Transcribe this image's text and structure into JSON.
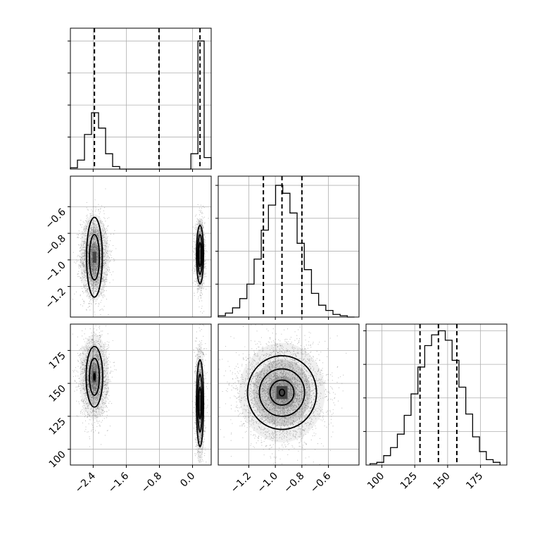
{
  "chart_data": {
    "type": "corner",
    "variables": [
      "x0",
      "x1",
      "x2"
    ],
    "grid": true,
    "colors": {
      "mark": "#000000",
      "points": "#555555",
      "gridline": "#b0b0b0"
    },
    "axes": {
      "x0": {
        "range": [
          -2.95,
          0.45
        ],
        "ticks": [
          -2.4,
          -1.6,
          -0.8,
          0.0
        ],
        "tick_labels": [
          "−2.4",
          "−1.6",
          "−0.8",
          "0.0"
        ]
      },
      "x1": {
        "range": [
          -1.43,
          -0.37
        ],
        "ticks": [
          -1.2,
          -1.0,
          -0.8,
          -0.6
        ],
        "tick_labels": [
          "−1.2",
          "−1.0",
          "−0.8",
          "−0.6"
        ]
      },
      "x2": {
        "range": [
          88,
          195
        ],
        "ticks": [
          100,
          125,
          150,
          175
        ],
        "tick_labels": [
          "100",
          "125",
          "150",
          "175"
        ]
      }
    },
    "histograms": [
      {
        "variable": "x0",
        "bin_edges": [
          -2.95,
          -2.78,
          -2.61,
          -2.44,
          -2.27,
          -2.1,
          -1.93,
          -1.76,
          -1.59,
          -0.55,
          -0.38,
          -0.21,
          -0.04,
          0.13,
          0.28,
          0.45
        ],
        "counts": [
          0.01,
          0.07,
          0.27,
          0.44,
          0.32,
          0.12,
          0.02,
          0.0,
          0.0,
          0.0,
          0.0,
          0.0,
          0.12,
          1.0,
          0.09
        ],
        "quantiles": [
          -2.37,
          -0.81,
          0.18
        ],
        "ylim": [
          0,
          1.1
        ]
      },
      {
        "variable": "x1",
        "bin_edges": [
          -1.43,
          -1.376,
          -1.322,
          -1.268,
          -1.214,
          -1.16,
          -1.106,
          -1.052,
          -0.998,
          -0.944,
          -0.89,
          -0.836,
          -0.782,
          -0.728,
          -0.674,
          -0.62,
          -0.566,
          -0.512,
          -0.458,
          -0.404
        ],
        "counts": [
          0.01,
          0.03,
          0.07,
          0.14,
          0.25,
          0.44,
          0.66,
          0.85,
          1.0,
          0.94,
          0.79,
          0.56,
          0.36,
          0.18,
          0.09,
          0.05,
          0.02,
          0.01,
          0.0
        ],
        "quantiles": [
          -1.09,
          -0.95,
          -0.8
        ],
        "ylim": [
          0,
          1.07
        ]
      },
      {
        "variable": "x2",
        "bin_edges": [
          91,
          96.2,
          101.4,
          106.6,
          111.8,
          117,
          122.2,
          127.4,
          132.6,
          137.8,
          143,
          148.2,
          153.4,
          158.6,
          163.8,
          169,
          174.2,
          179.4,
          184.6,
          189.8
        ],
        "counts": [
          0.01,
          0.02,
          0.07,
          0.13,
          0.23,
          0.37,
          0.53,
          0.73,
          0.89,
          0.97,
          1.0,
          0.93,
          0.78,
          0.58,
          0.38,
          0.21,
          0.1,
          0.04,
          0.02
        ],
        "quantiles": [
          129,
          143,
          157
        ],
        "ylim": [
          0,
          1.05
        ]
      }
    ],
    "scatter_panels": [
      {
        "x": "x0",
        "y": "x1",
        "clusters": [
          {
            "center": [
              -2.37,
              -0.98
            ],
            "sd": [
              0.13,
              0.12
            ],
            "n": 2200
          },
          {
            "center": [
              0.18,
              -0.96
            ],
            "sd": [
              0.045,
              0.1
            ],
            "n": 1300
          }
        ],
        "contours": [
          {
            "cluster": 0,
            "levels": [
              [
                0.19,
                0.3
              ],
              [
                0.12,
                0.17
              ]
            ]
          },
          {
            "cluster": 1,
            "levels": [
              [
                0.085,
                0.22
              ],
              [
                0.055,
                0.15
              ],
              [
                0.03,
                0.09
              ]
            ]
          }
        ]
      },
      {
        "x": "x0",
        "y": "x2",
        "clusters": [
          {
            "center": [
              -2.37,
              155
            ],
            "sd": [
              0.13,
              12
            ],
            "n": 2200
          },
          {
            "center": [
              0.18,
              135
            ],
            "sd": [
              0.045,
              17
            ],
            "n": 1300
          }
        ],
        "contours": [
          {
            "cluster": 0,
            "levels": [
              [
                0.2,
                23
              ],
              [
                0.12,
                14
              ],
              [
                0.015,
                2.5
              ]
            ]
          },
          {
            "cluster": 1,
            "levels": [
              [
                0.085,
                33
              ],
              [
                0.055,
                22
              ],
              [
                0.03,
                12
              ]
            ]
          }
        ]
      },
      {
        "x": "x1",
        "y": "x2",
        "clusters": [
          {
            "center": [
              -0.95,
              143
            ],
            "sd": [
              0.12,
              14
            ],
            "n": 4200
          }
        ],
        "contours": [
          {
            "cluster": 0,
            "levels": [
              [
                0.26,
                28
              ],
              [
                0.17,
                18
              ],
              [
                0.09,
                9.5
              ],
              [
                0.02,
                2.5
              ]
            ]
          }
        ]
      }
    ]
  }
}
